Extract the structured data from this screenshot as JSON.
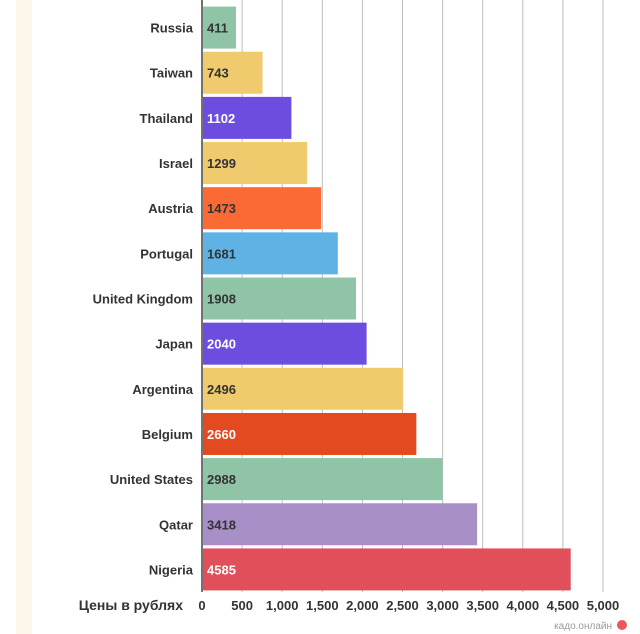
{
  "chart_data": {
    "type": "bar",
    "orientation": "horizontal",
    "categories": [
      "Russia",
      "Taiwan",
      "Thailand",
      "Israel",
      "Austria",
      "Portugal",
      "United Kingdom",
      "Japan",
      "Argentina",
      "Belgium",
      "United States",
      "Qatar",
      "Nigeria"
    ],
    "values": [
      411,
      743,
      1102,
      1299,
      1473,
      1681,
      1908,
      2040,
      2496,
      2660,
      2988,
      3418,
      4585
    ],
    "value_labels": [
      "411",
      "743",
      "1102",
      "1299",
      "1473",
      "1681",
      "1908",
      "2040",
      "2496",
      "2660",
      "2988",
      "3418",
      "4585"
    ],
    "colors": [
      "#8fc4a6",
      "#f0cb6e",
      "#6c4de0",
      "#f0cb6e",
      "#fb6a34",
      "#5fb2e4",
      "#8fc4a6",
      "#6c4de0",
      "#f0cb6e",
      "#e44a1f",
      "#8fc4a6",
      "#a88fc8",
      "#e04f5a"
    ],
    "value_label_colors": [
      "#333333",
      "#333333",
      "#ffffff",
      "#333333",
      "#333333",
      "#333333",
      "#333333",
      "#ffffff",
      "#333333",
      "#ffffff",
      "#333333",
      "#333333",
      "#ffffff"
    ],
    "xlim": [
      0,
      5000
    ],
    "xticks": [
      0,
      500,
      1000,
      1500,
      2000,
      2500,
      3000,
      3500,
      4000,
      4500,
      5000
    ],
    "xtick_labels": [
      "0",
      "500",
      "1,000",
      "1,500",
      "2,000",
      "2,500",
      "3,000",
      "3,500",
      "4,000",
      "4,500",
      "5,000"
    ],
    "xlabel": "Цены в рублях",
    "ylabel": "",
    "title": "",
    "grid": true,
    "legend": "none"
  },
  "watermark": {
    "text": "кадо.онлайн",
    "accent_color": "#e85a5a"
  }
}
